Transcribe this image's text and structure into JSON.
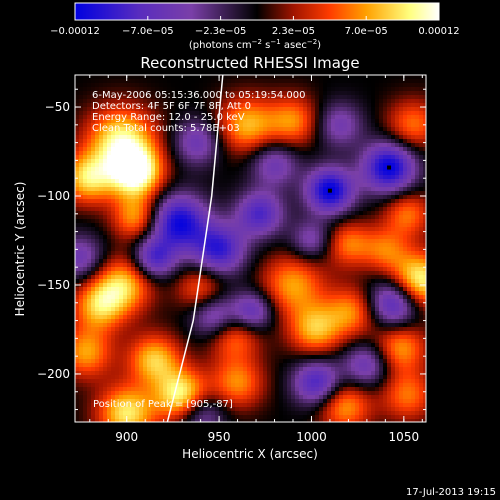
{
  "chart_data": {
    "type": "heatmap",
    "title": "Reconstructed RHESSI Image",
    "xlabel": "Heliocentric X (arcsec)",
    "ylabel": "Heliocentric Y (arcsec)",
    "xlim": [
      872,
      1062
    ],
    "ylim": [
      -227,
      -32
    ],
    "x_ticks": [
      900,
      950,
      1000,
      1050
    ],
    "x_tick_labels": [
      "900",
      "950",
      "1000",
      "1050"
    ],
    "y_ticks": [
      -50,
      -100,
      -150,
      -200
    ],
    "y_tick_labels": [
      "−50",
      "−100",
      "−150",
      "−200"
    ],
    "colorbar": {
      "range": [
        -0.00012,
        0.00012
      ],
      "tick_labels": [
        "−0.00012",
        "−7.0e−05",
        "−2.3e−05",
        "2.3e−05",
        "7.0e−05",
        "0.00012"
      ],
      "unit_label": "(photons cm",
      "unit_exp1": "−2",
      "unit_mid": " s",
      "unit_exp2": "−1",
      "unit_end": " asec",
      "unit_exp3": "−2",
      "unit_close": ")",
      "colors": [
        "#0000e0",
        "#5a2dbe",
        "#7a3fa8",
        "#000000",
        "#a01400",
        "#ff3c00",
        "#ffa000",
        "#ffff80",
        "#ffffff"
      ]
    },
    "info_lines": [
      "6-May-2006 05:15:36.000 to 05:19:54.000",
      "Detectors: 4F 5F 6F 7F 8F, Att 0",
      "Energy Range: 12.0 - 25.0 keV",
      "Clean     Total counts: 5.78E+03"
    ],
    "peak_label": "Position of Peak = [905,-87]",
    "markers": [
      {
        "x": 1010,
        "y": -97
      },
      {
        "x": 1042,
        "y": -84
      }
    ],
    "limb_curve": [
      {
        "x": 952,
        "y": -32
      },
      {
        "x": 946,
        "y": -100
      },
      {
        "x": 936,
        "y": -170
      },
      {
        "x": 922,
        "y": -227
      }
    ],
    "blobs": [
      {
        "x": 905,
        "y": -87,
        "v": 1.0,
        "r": 10
      },
      {
        "x": 897,
        "y": -69,
        "v": 0.85,
        "r": 13
      },
      {
        "x": 879,
        "y": -90,
        "v": 0.75,
        "r": 10
      },
      {
        "x": 898,
        "y": -150,
        "v": 0.7,
        "r": 11
      },
      {
        "x": 905,
        "y": -112,
        "v": 0.6,
        "r": 9
      },
      {
        "x": 885,
        "y": -162,
        "v": 0.65,
        "r": 10
      },
      {
        "x": 878,
        "y": -188,
        "v": 0.6,
        "r": 10
      },
      {
        "x": 915,
        "y": -192,
        "v": 0.7,
        "r": 10
      },
      {
        "x": 900,
        "y": -222,
        "v": 0.8,
        "r": 11
      },
      {
        "x": 930,
        "y": -212,
        "v": 0.9,
        "r": 10
      },
      {
        "x": 940,
        "y": -152,
        "v": 0.45,
        "r": 9
      },
      {
        "x": 965,
        "y": -60,
        "v": 0.65,
        "r": 11
      },
      {
        "x": 990,
        "y": -58,
        "v": 0.55,
        "r": 10
      },
      {
        "x": 958,
        "y": -178,
        "v": 0.55,
        "r": 10
      },
      {
        "x": 990,
        "y": -150,
        "v": 0.6,
        "r": 12
      },
      {
        "x": 1002,
        "y": -175,
        "v": 0.65,
        "r": 10
      },
      {
        "x": 960,
        "y": -205,
        "v": 0.55,
        "r": 10
      },
      {
        "x": 1020,
        "y": -127,
        "v": 0.5,
        "r": 9
      },
      {
        "x": 1040,
        "y": -130,
        "v": 0.45,
        "r": 9
      },
      {
        "x": 1058,
        "y": -148,
        "v": 0.95,
        "r": 11
      },
      {
        "x": 1052,
        "y": -110,
        "v": 0.5,
        "r": 9
      },
      {
        "x": 1022,
        "y": -165,
        "v": 0.55,
        "r": 10
      },
      {
        "x": 1048,
        "y": -185,
        "v": 0.6,
        "r": 10
      },
      {
        "x": 1018,
        "y": -218,
        "v": 0.6,
        "r": 10
      },
      {
        "x": 1055,
        "y": -60,
        "v": 0.5,
        "r": 10
      },
      {
        "x": 1052,
        "y": -212,
        "v": 0.5,
        "r": 10
      },
      {
        "x": 928,
        "y": -115,
        "v": -0.95,
        "r": 11
      },
      {
        "x": 915,
        "y": -135,
        "v": -0.7,
        "r": 8
      },
      {
        "x": 950,
        "y": -130,
        "v": -0.8,
        "r": 10
      },
      {
        "x": 972,
        "y": -110,
        "v": -0.7,
        "r": 9
      },
      {
        "x": 1010,
        "y": -97,
        "v": -1.0,
        "r": 9
      },
      {
        "x": 1042,
        "y": -84,
        "v": -1.0,
        "r": 10
      },
      {
        "x": 948,
        "y": -168,
        "v": -0.6,
        "r": 9
      },
      {
        "x": 968,
        "y": -165,
        "v": -0.65,
        "r": 8
      },
      {
        "x": 1045,
        "y": -160,
        "v": -0.85,
        "r": 10
      },
      {
        "x": 1003,
        "y": -205,
        "v": -0.75,
        "r": 9
      },
      {
        "x": 980,
        "y": -82,
        "v": -0.5,
        "r": 9
      },
      {
        "x": 938,
        "y": -70,
        "v": -0.5,
        "r": 9
      },
      {
        "x": 875,
        "y": -135,
        "v": -0.5,
        "r": 9
      },
      {
        "x": 1000,
        "y": -125,
        "v": -0.45,
        "r": 8
      },
      {
        "x": 1030,
        "y": -195,
        "v": -0.55,
        "r": 9
      },
      {
        "x": 940,
        "y": -222,
        "v": -0.5,
        "r": 9
      },
      {
        "x": 1015,
        "y": -60,
        "v": -0.45,
        "r": 9
      }
    ]
  },
  "footer": {
    "date": "17-Jul-2013 19:15"
  }
}
